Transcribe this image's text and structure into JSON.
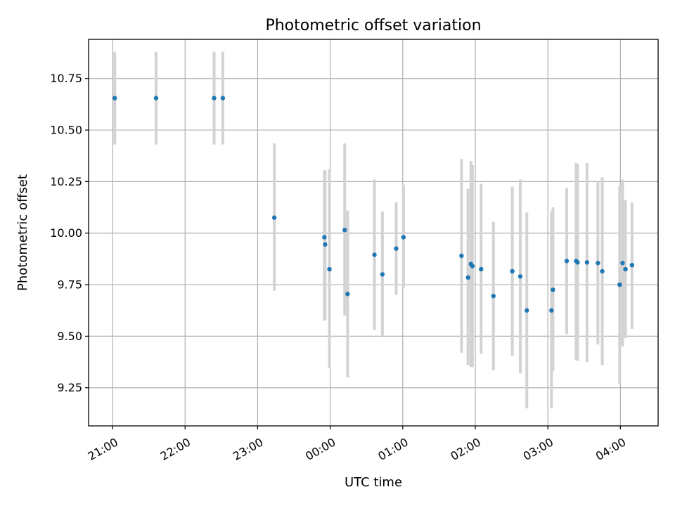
{
  "chart_data": {
    "type": "scatter",
    "title": "Photometric offset variation",
    "xlabel": "UTC time",
    "ylabel": "Photometric offset",
    "x_axis": {
      "kind": "time",
      "unit": "hours since 00:00 UTC",
      "range": [
        -3.33,
        4.52
      ],
      "ticks": [
        {
          "value": -3,
          "label": "21:00"
        },
        {
          "value": -2,
          "label": "22:00"
        },
        {
          "value": -1,
          "label": "23:00"
        },
        {
          "value": 0,
          "label": "00:00"
        },
        {
          "value": 1,
          "label": "01:00"
        },
        {
          "value": 2,
          "label": "02:00"
        },
        {
          "value": 3,
          "label": "03:00"
        },
        {
          "value": 4,
          "label": "04:00"
        }
      ]
    },
    "y_axis": {
      "range": [
        9.065,
        10.94
      ],
      "ticks": [
        {
          "value": 9.25,
          "label": "9.25"
        },
        {
          "value": 9.5,
          "label": "9.50"
        },
        {
          "value": 9.75,
          "label": "9.75"
        },
        {
          "value": 10.0,
          "label": "10.00"
        },
        {
          "value": 10.25,
          "label": "10.25"
        },
        {
          "value": 10.5,
          "label": "10.50"
        },
        {
          "value": 10.75,
          "label": "10.75"
        }
      ]
    },
    "grid": true,
    "colors": {
      "points": "#1f77b4",
      "errorbars": "#d3d3d3",
      "grid": "#b0b0b0"
    },
    "points": [
      {
        "x": -2.97,
        "y": 10.655,
        "ylo": 10.43,
        "yhi": 10.88
      },
      {
        "x": -2.4,
        "y": 10.655,
        "ylo": 10.43,
        "yhi": 10.88
      },
      {
        "x": -1.6,
        "y": 10.655,
        "ylo": 10.43,
        "yhi": 10.88
      },
      {
        "x": -1.48,
        "y": 10.655,
        "ylo": 10.43,
        "yhi": 10.88
      },
      {
        "x": -0.77,
        "y": 10.075,
        "ylo": 9.72,
        "yhi": 10.435
      },
      {
        "x": -0.08,
        "y": 9.98,
        "ylo": 9.575,
        "yhi": 10.305
      },
      {
        "x": -0.07,
        "y": 9.945,
        "ylo": 9.58,
        "yhi": 10.305
      },
      {
        "x": -0.01,
        "y": 9.825,
        "ylo": 9.345,
        "yhi": 10.31
      },
      {
        "x": 0.2,
        "y": 10.015,
        "ylo": 9.6,
        "yhi": 10.435
      },
      {
        "x": 0.24,
        "y": 9.705,
        "ylo": 9.3,
        "yhi": 10.11
      },
      {
        "x": 0.61,
        "y": 9.895,
        "ylo": 9.53,
        "yhi": 10.26
      },
      {
        "x": 0.72,
        "y": 9.8,
        "ylo": 9.5,
        "yhi": 10.105
      },
      {
        "x": 0.91,
        "y": 9.925,
        "ylo": 9.7,
        "yhi": 10.15
      },
      {
        "x": 1.01,
        "y": 9.98,
        "ylo": 9.735,
        "yhi": 10.235
      },
      {
        "x": 1.81,
        "y": 9.89,
        "ylo": 9.42,
        "yhi": 10.36
      },
      {
        "x": 1.9,
        "y": 9.785,
        "ylo": 9.36,
        "yhi": 10.215
      },
      {
        "x": 1.94,
        "y": 9.85,
        "ylo": 9.35,
        "yhi": 10.35
      },
      {
        "x": 1.96,
        "y": 9.84,
        "ylo": 9.35,
        "yhi": 10.33
      },
      {
        "x": 2.08,
        "y": 9.825,
        "ylo": 9.415,
        "yhi": 10.24
      },
      {
        "x": 2.25,
        "y": 9.695,
        "ylo": 9.335,
        "yhi": 10.055
      },
      {
        "x": 2.51,
        "y": 9.815,
        "ylo": 9.405,
        "yhi": 10.225
      },
      {
        "x": 2.62,
        "y": 9.79,
        "ylo": 9.32,
        "yhi": 10.26
      },
      {
        "x": 2.71,
        "y": 9.625,
        "ylo": 9.15,
        "yhi": 10.1
      },
      {
        "x": 3.05,
        "y": 9.625,
        "ylo": 9.15,
        "yhi": 10.105
      },
      {
        "x": 3.07,
        "y": 9.725,
        "ylo": 9.33,
        "yhi": 10.125
      },
      {
        "x": 3.26,
        "y": 9.865,
        "ylo": 9.51,
        "yhi": 10.22
      },
      {
        "x": 3.39,
        "y": 9.865,
        "ylo": 9.385,
        "yhi": 10.34
      },
      {
        "x": 3.41,
        "y": 9.858,
        "ylo": 9.38,
        "yhi": 10.335
      },
      {
        "x": 3.54,
        "y": 9.858,
        "ylo": 9.375,
        "yhi": 10.34
      },
      {
        "x": 3.69,
        "y": 9.855,
        "ylo": 9.46,
        "yhi": 10.25
      },
      {
        "x": 3.75,
        "y": 9.815,
        "ylo": 9.36,
        "yhi": 10.27
      },
      {
        "x": 3.99,
        "y": 9.75,
        "ylo": 9.27,
        "yhi": 10.23
      },
      {
        "x": 4.03,
        "y": 9.855,
        "ylo": 9.45,
        "yhi": 10.26
      },
      {
        "x": 4.07,
        "y": 9.825,
        "ylo": 9.49,
        "yhi": 10.16
      },
      {
        "x": 4.16,
        "y": 9.845,
        "ylo": 9.535,
        "yhi": 10.15
      }
    ]
  }
}
